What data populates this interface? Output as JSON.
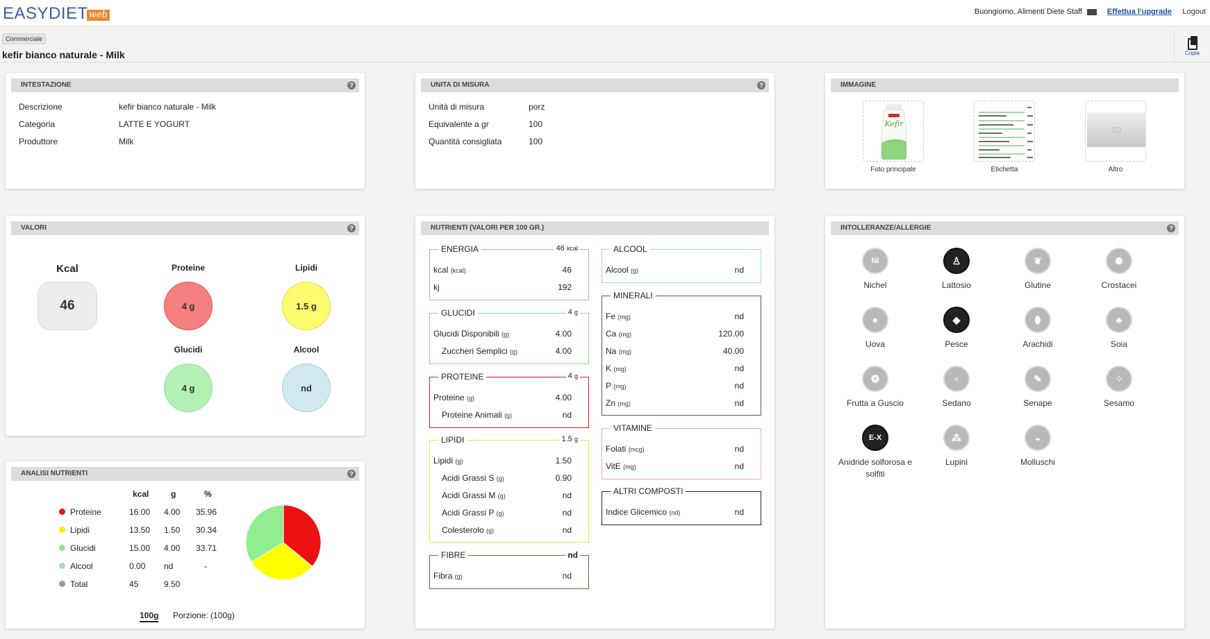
{
  "app": {
    "brand": "EASYDIET",
    "brand_suffix": "web",
    "greeting": "Buongiorno, Alimenti Diete Staff",
    "upgrade": "Effettua l'upgrade",
    "logout": "Logout"
  },
  "page": {
    "breadcrumb": "Commerciale",
    "title": "kefir bianco naturale - Milk",
    "copy_label": "Copia"
  },
  "intestazione": {
    "title": "INTESTAZIONE",
    "rows": [
      {
        "k": "Descrizione",
        "v": "kefir bianco naturale - Milk"
      },
      {
        "k": "Categoria",
        "v": "LATTE E YOGURT"
      },
      {
        "k": "Produttore",
        "v": "Milk"
      }
    ]
  },
  "unita": {
    "title": "UNITA DI MISURA",
    "rows": [
      {
        "k": "Unità di misura",
        "v": "porz"
      },
      {
        "k": "Equivalente a gr",
        "v": "100"
      },
      {
        "k": "Quantità consigliata",
        "v": "100"
      }
    ]
  },
  "immagine": {
    "title": "IMMAGINE",
    "items": [
      {
        "label": "Foto principale",
        "bottle_label": "Kefir"
      },
      {
        "label": "Etichetta"
      },
      {
        "label": "Altro"
      }
    ]
  },
  "valori": {
    "title": "VALORI",
    "kcal": {
      "label": "Kcal",
      "value": "46"
    },
    "proteine": {
      "label": "Proteine",
      "value": "4 g",
      "color": "#f47f7f"
    },
    "lipidi": {
      "label": "Lipidi",
      "value": "1.5 g",
      "color": "#fdfb6e"
    },
    "glucidi": {
      "label": "Glucidi",
      "value": "4 g",
      "color": "#b3f0b3"
    },
    "alcool": {
      "label": "Alcool",
      "value": "nd",
      "color": "#d2e8f0"
    }
  },
  "analisi": {
    "title": "ANALISI NUTRIENTI",
    "headers": [
      "kcal",
      "g",
      "%"
    ],
    "rows": [
      {
        "name": "Proteine",
        "kcal": "16.00",
        "g": "4.00",
        "pct": "35.96",
        "color": "#ee1111"
      },
      {
        "name": "Lipidi",
        "kcal": "13.50",
        "g": "1.50",
        "pct": "30.34",
        "color": "#f2f200"
      },
      {
        "name": "Glucidi",
        "kcal": "15.00",
        "g": "4.00",
        "pct": "33.71",
        "color": "#8ee88e"
      },
      {
        "name": "Alcool",
        "kcal": "0.00",
        "g": "nd",
        "pct": "-",
        "color": "#a8d0e0"
      },
      {
        "name": "Total",
        "kcal": "45",
        "g": "9.50",
        "pct": "",
        "color": "#999999"
      }
    ],
    "portion_tab": "100g",
    "portion_label": "Porzione: (100g)"
  },
  "chart_data": {
    "type": "pie",
    "categories": [
      "Proteine",
      "Lipidi",
      "Glucidi"
    ],
    "values": [
      35.96,
      30.34,
      33.71
    ],
    "colors": [
      "#ee1111",
      "#ffff00",
      "#90ee90"
    ]
  },
  "nutrienti": {
    "title": "NUTRIENTI (VALORI PER 100 GR.)",
    "energia": {
      "title": "ENERGIA",
      "total": "46",
      "unit": "kcal",
      "rows": [
        {
          "label": "kcal",
          "unit": "(kcal)",
          "value": "46"
        },
        {
          "label": "kj",
          "unit": "",
          "value": "192"
        }
      ]
    },
    "glucidi": {
      "title": "GLUCIDI",
      "total": "4",
      "unit": "g",
      "rows": [
        {
          "label": "Glucidi Disponibili",
          "unit": "(g)",
          "value": "4.00"
        },
        {
          "label": "Zuccheri Semplici",
          "unit": "(g)",
          "value": "4.00"
        }
      ]
    },
    "proteine": {
      "title": "PROTEINE",
      "total": "4",
      "unit": "g",
      "rows": [
        {
          "label": "Proteine",
          "unit": "(g)",
          "value": "4.00"
        },
        {
          "label": "Proteine Animali",
          "unit": "(g)",
          "value": "nd"
        }
      ]
    },
    "lipidi": {
      "title": "LIPIDI",
      "total": "1.5",
      "unit": "g",
      "rows": [
        {
          "label": "Lipidi",
          "unit": "(g)",
          "value": "1.50"
        },
        {
          "label": "Acidi Grassi S",
          "unit": "(g)",
          "value": "0.90"
        },
        {
          "label": "Acidi Grassi M",
          "unit": "(g)",
          "value": "nd"
        },
        {
          "label": "Acidi Grassi P",
          "unit": "(g)",
          "value": "nd"
        },
        {
          "label": "Colesterolo",
          "unit": "(g)",
          "value": "nd"
        }
      ]
    },
    "fibre": {
      "title": "FIBRE",
      "total": "nd",
      "rows": [
        {
          "label": "Fibra",
          "unit": "(g)",
          "value": "nd"
        }
      ]
    },
    "alcool": {
      "title": "ALCOOL",
      "rows": [
        {
          "label": "Alcool",
          "unit": "(g)",
          "value": "nd"
        }
      ]
    },
    "minerali": {
      "title": "MINERALI",
      "rows": [
        {
          "label": "Fe",
          "unit": "(mg)",
          "value": "nd"
        },
        {
          "label": "Ca",
          "unit": "(mg)",
          "value": "120.00"
        },
        {
          "label": "Na",
          "unit": "(mg)",
          "value": "40.00"
        },
        {
          "label": "K",
          "unit": "(mg)",
          "value": "nd"
        },
        {
          "label": "P",
          "unit": "(mg)",
          "value": "nd"
        },
        {
          "label": "Zn",
          "unit": "(mg)",
          "value": "nd"
        }
      ]
    },
    "vitamine": {
      "title": "VITAMINE",
      "rows": [
        {
          "label": "Folati",
          "unit": "(mcg)",
          "value": "nd"
        },
        {
          "label": "VitE",
          "unit": "(mg)",
          "value": "nd"
        }
      ]
    },
    "altri": {
      "title": "ALTRI COMPOSTI",
      "rows": [
        {
          "label": "Indice Glicemico",
          "unit": "(nd)",
          "value": "nd"
        }
      ]
    }
  },
  "intolleranze": {
    "title": "INTOLLERANZE/ALLERGIE",
    "items": [
      {
        "label": "Nichel",
        "icon": "nickel-icon",
        "active": false,
        "glyph": "Ni"
      },
      {
        "label": "Lattosio",
        "icon": "milk-icon",
        "active": true,
        "glyph": "♙"
      },
      {
        "label": "Glutine",
        "icon": "wheat-icon",
        "active": false,
        "glyph": "❦"
      },
      {
        "label": "Crostacei",
        "icon": "crab-icon",
        "active": false,
        "glyph": "✺"
      },
      {
        "label": "Uova",
        "icon": "egg-icon",
        "active": false,
        "glyph": "●"
      },
      {
        "label": "Pesce",
        "icon": "fish-icon",
        "active": true,
        "glyph": "◆"
      },
      {
        "label": "Arachidi",
        "icon": "peanut-icon",
        "active": false,
        "glyph": "⬮"
      },
      {
        "label": "Soia",
        "icon": "soy-icon",
        "active": false,
        "glyph": "♣"
      },
      {
        "label": "Frutta a Guscio",
        "icon": "nut-icon",
        "active": false,
        "glyph": "❂"
      },
      {
        "label": "Sedano",
        "icon": "celery-icon",
        "active": false,
        "glyph": "♆"
      },
      {
        "label": "Senape",
        "icon": "mustard-icon",
        "active": false,
        "glyph": "✎"
      },
      {
        "label": "Sesamo",
        "icon": "sesame-icon",
        "active": false,
        "glyph": "⁘"
      },
      {
        "label": "Anidride solforosa e solfiti",
        "icon": "sulfite-icon",
        "active": true,
        "glyph": "E-X"
      },
      {
        "label": "Lupini",
        "icon": "lupin-icon",
        "active": false,
        "glyph": "⁂"
      },
      {
        "label": "Molluschi",
        "icon": "shell-icon",
        "active": false,
        "glyph": "◒"
      }
    ]
  }
}
